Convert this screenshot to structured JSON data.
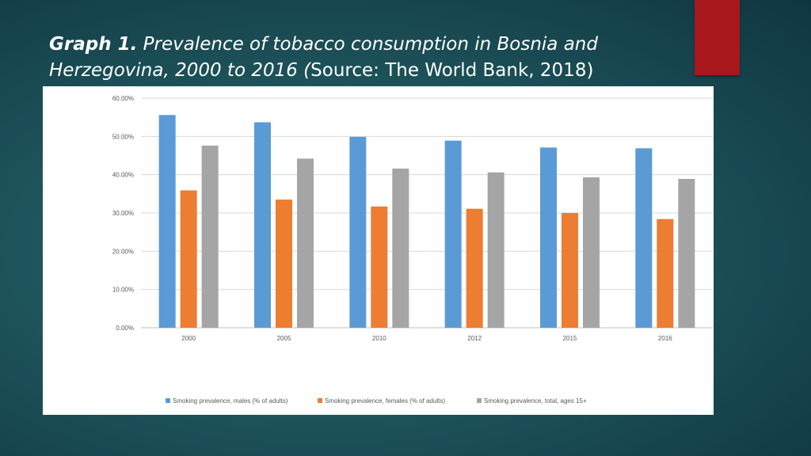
{
  "slide": {
    "title_bold": "Graph 1.",
    "title_italic": " Prevalence of tobacco consumption in Bosnia and Herzegovina, 2000 to 2016 (",
    "title_regular": "Source: The World Bank, 2018)",
    "accent_color": "#a8171b"
  },
  "chart_data": {
    "type": "bar",
    "categories": [
      "2000",
      "2005",
      "2010",
      "2012",
      "2015",
      "2016"
    ],
    "series": [
      {
        "name": "Smoking prevalence, males (% of adults)",
        "color": "#5b9bd5",
        "values": [
          55.6,
          53.7,
          49.9,
          48.9,
          47.1,
          46.9
        ]
      },
      {
        "name": "Smoking prevalence, females (% of adults)",
        "color": "#ed7d31",
        "values": [
          35.9,
          33.5,
          31.7,
          31.1,
          30.0,
          28.4
        ]
      },
      {
        "name": "Smoking prevalence, total, ages 15+",
        "color": "#a5a5a5",
        "values": [
          47.6,
          44.2,
          41.6,
          40.6,
          39.3,
          38.9
        ]
      }
    ],
    "y_ticks": [
      "0.00%",
      "10.00%",
      "20.00%",
      "30.00%",
      "40.00%",
      "50.00%",
      "60.00%"
    ],
    "ylim": [
      0,
      60
    ],
    "grid": true,
    "legend_position": "bottom"
  }
}
